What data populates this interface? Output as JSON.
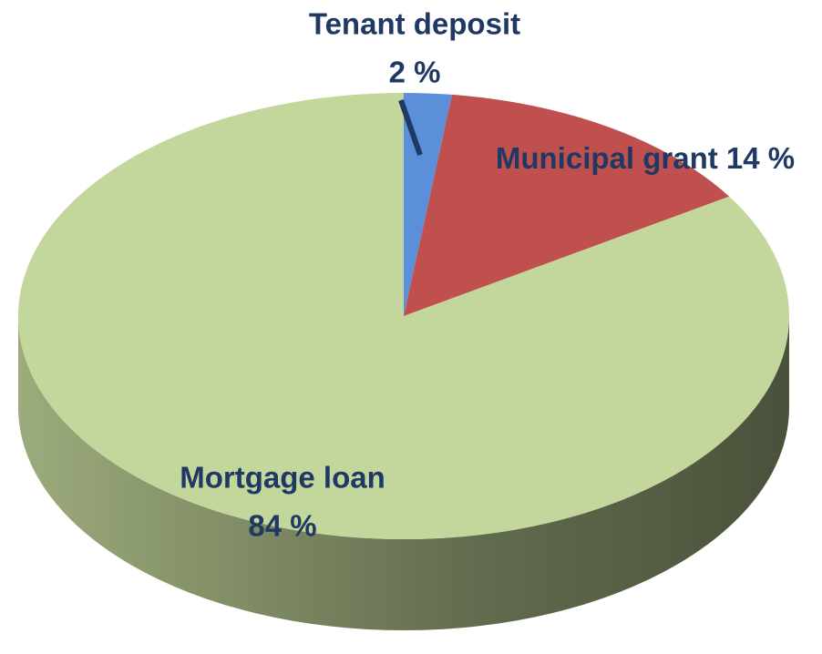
{
  "chart_data": {
    "type": "pie",
    "categories": [
      "Tenant deposit",
      "Municipal grant",
      "Mortgage loan"
    ],
    "values": [
      2,
      14,
      84
    ],
    "value_labels": [
      "2 %",
      "14 %",
      "84 %"
    ],
    "colors": [
      "#5b8fd9",
      "#c0504d",
      "#c3d69b"
    ]
  }
}
